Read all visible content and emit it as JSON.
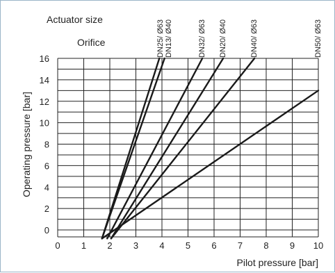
{
  "chart_data": {
    "type": "line",
    "header_row_1": "Actuator size",
    "header_row_2": "Orifice",
    "xlabel": "Pilot pressure [bar]",
    "ylabel": "Operating pressure [bar]",
    "xlim": [
      0,
      10
    ],
    "ylim": [
      0,
      16
    ],
    "x_ticks": [
      "0",
      "1",
      "2",
      "3",
      "4",
      "5",
      "6",
      "7",
      "8",
      "9",
      "10"
    ],
    "y_ticks": [
      "0",
      "2",
      "4",
      "6",
      "8",
      "10",
      "12",
      "14",
      "16"
    ],
    "grid": true,
    "series": [
      {
        "label_line_1": "DN25/ Ø63",
        "label_line_2": "DN13/ Ø40",
        "x": [
          1.7,
          4.1
        ],
        "y": [
          -0.8,
          16
        ]
      },
      {
        "label_line_1": "",
        "label_line_2": "",
        "x": [
          1.7,
          3.9
        ],
        "y": [
          -0.8,
          16
        ]
      },
      {
        "label_line_1": "DN32/ Ø63",
        "label_line_2": "",
        "x": [
          1.9,
          5.55
        ],
        "y": [
          -0.8,
          16
        ]
      },
      {
        "label_line_1": "DN20/ Ø40",
        "label_line_2": "",
        "x": [
          2.05,
          6.35
        ],
        "y": [
          -0.8,
          16
        ]
      },
      {
        "label_line_1": "DN40/ Ø63",
        "label_line_2": "",
        "x": [
          2.05,
          7.55
        ],
        "y": [
          -0.8,
          16
        ]
      },
      {
        "label_line_1": "DN50/ Ø63",
        "label_line_2": "",
        "x": [
          1.7,
          10
        ],
        "y": [
          -0.8,
          13
        ]
      }
    ],
    "colors": {
      "line": "#1a1a1a",
      "grid": "#222222",
      "frame": "#9bb5c8"
    }
  }
}
